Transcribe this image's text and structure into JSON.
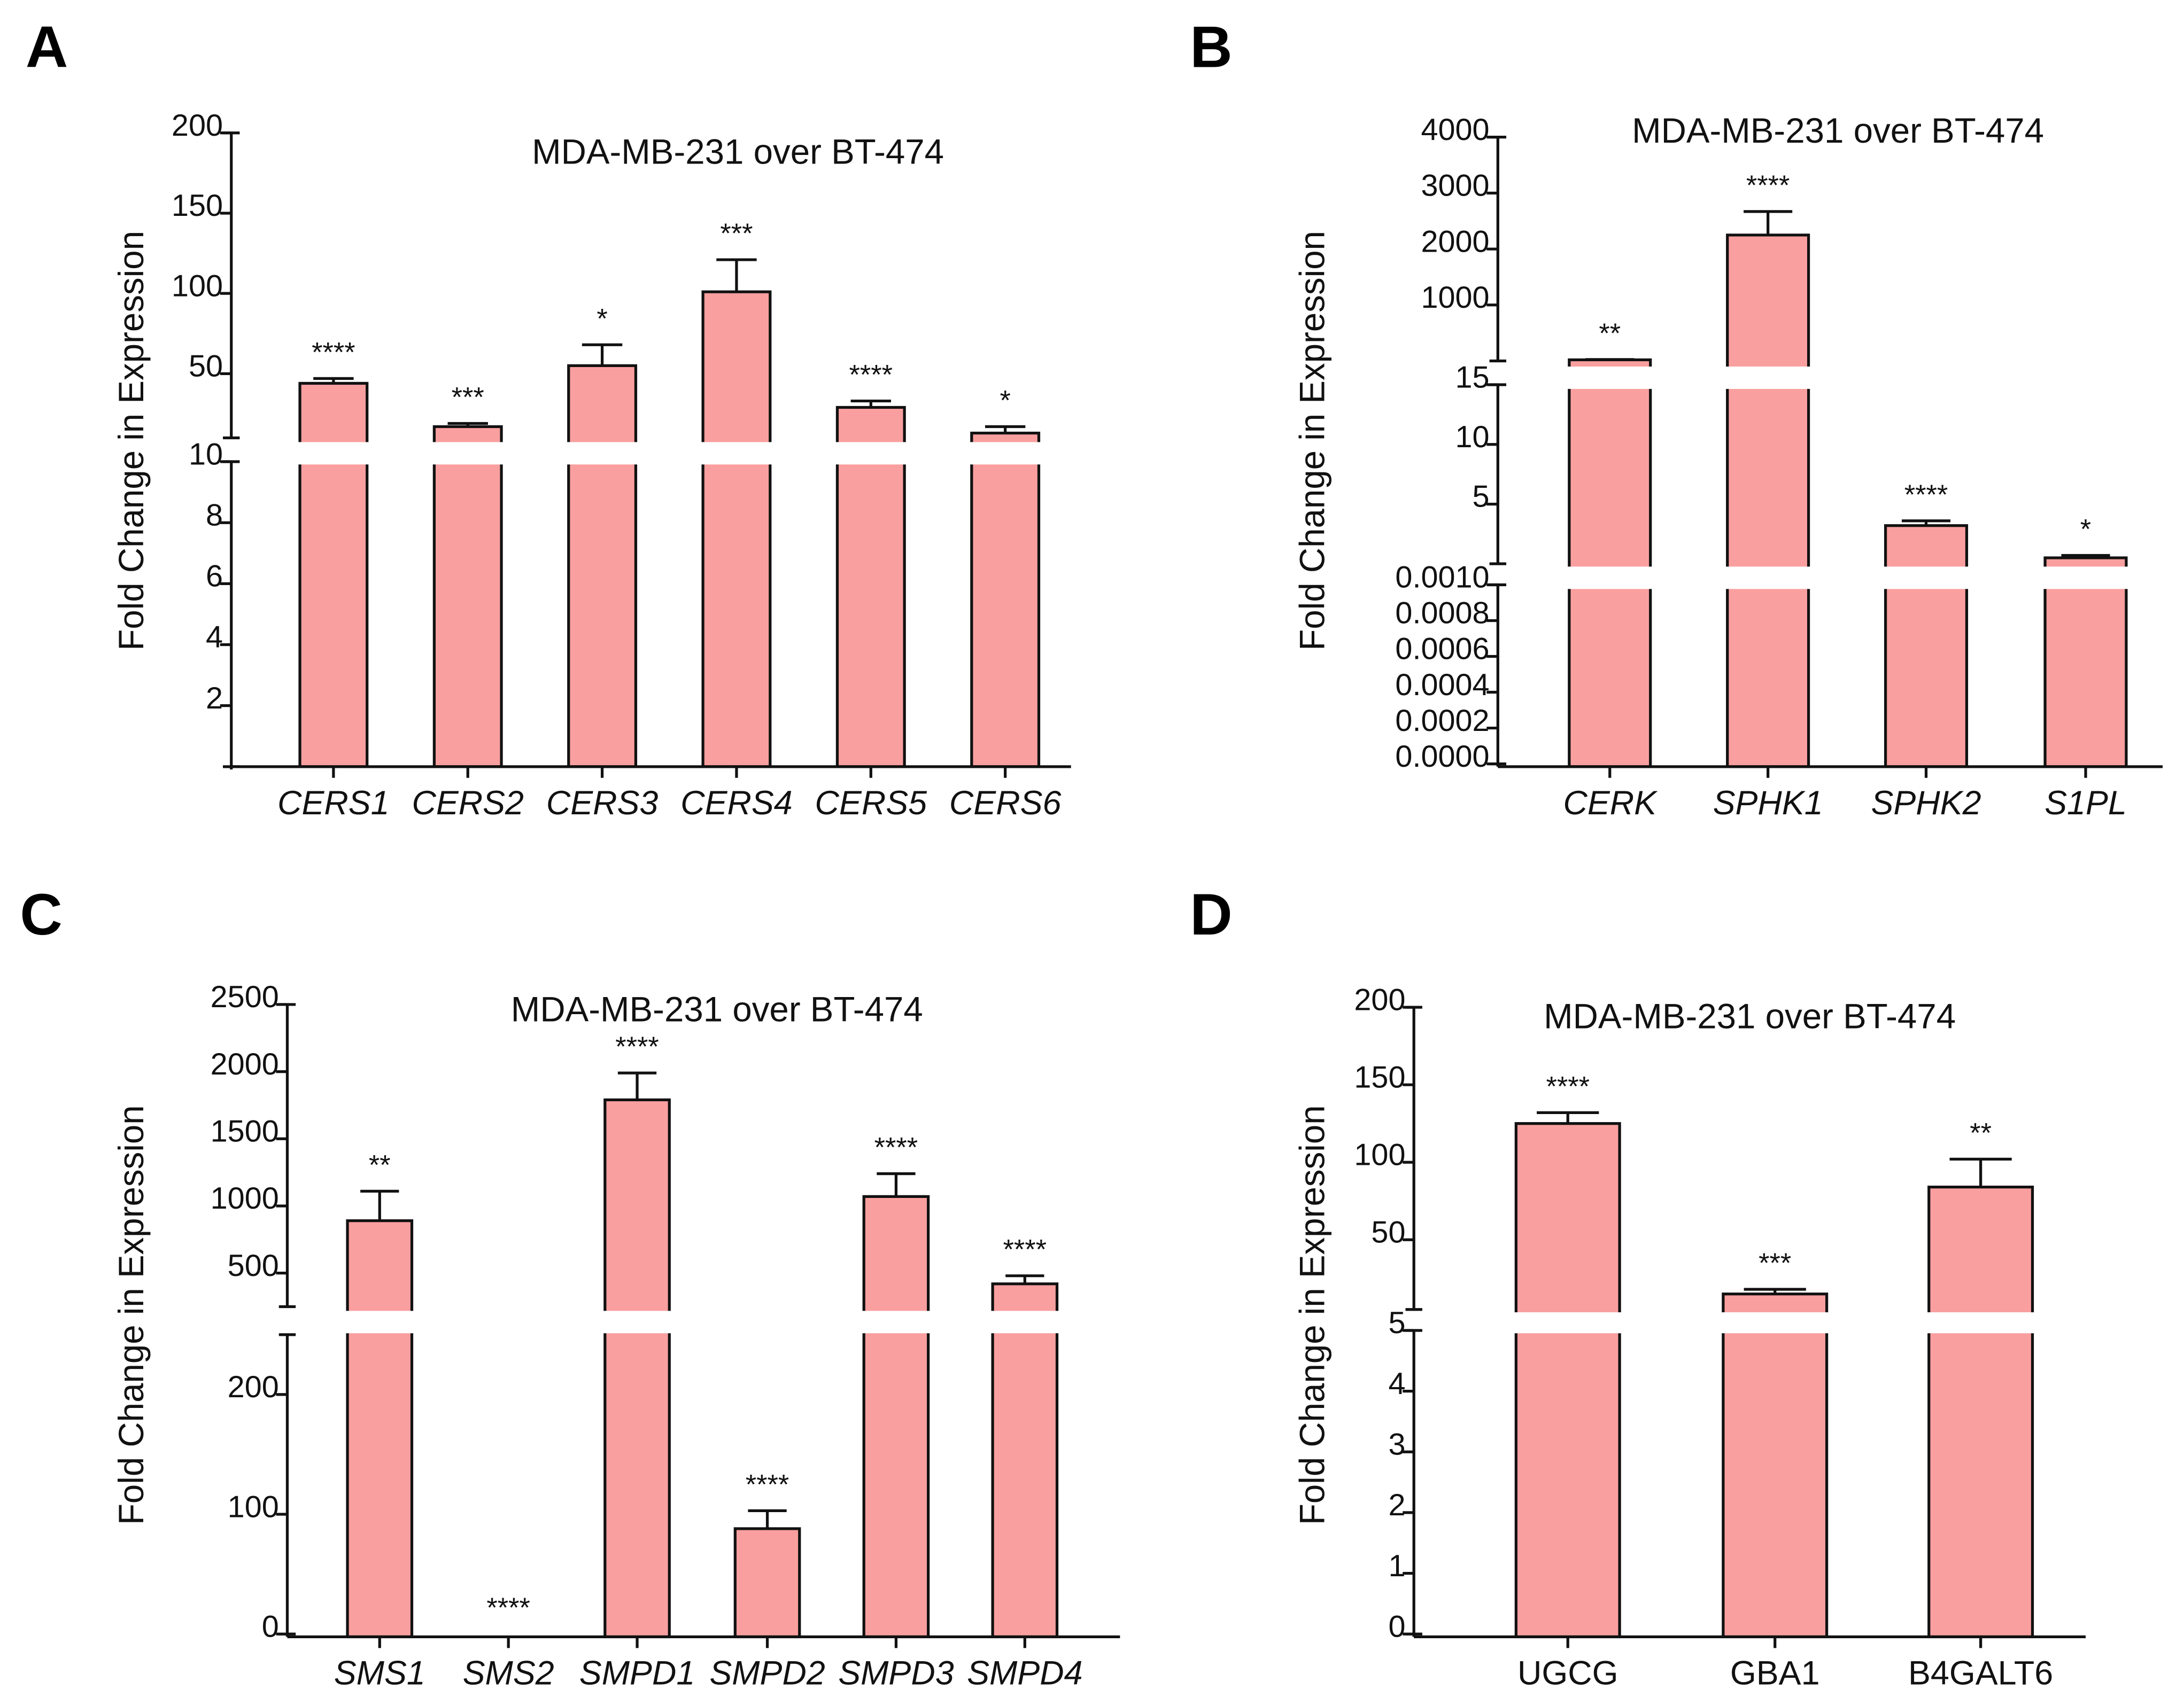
{
  "colors": {
    "bar": "#fa9f9f",
    "stroke": "#111111"
  },
  "chart_data": [
    {
      "panel": "A",
      "type": "bar",
      "title": "MDA-MB-231 over BT-474",
      "ylabel": "Fold Change in Expression",
      "italic": true,
      "categories": [
        "CERS1",
        "CERS2",
        "CERS3",
        "CERS4",
        "CERS5",
        "CERS6"
      ],
      "values": [
        44,
        17,
        55,
        101,
        29,
        13
      ],
      "errors": [
        3,
        2,
        13,
        20,
        4,
        4
      ],
      "significance": [
        "****",
        "***",
        "*",
        "***",
        "****",
        "*"
      ],
      "y_segments": [
        {
          "range": [
            0,
            10
          ],
          "ticks": [
            "2",
            "4",
            "6",
            "8",
            "10"
          ]
        },
        {
          "range": [
            10,
            200
          ],
          "ticks": [
            "50",
            "100",
            "150",
            "200"
          ]
        }
      ]
    },
    {
      "panel": "B",
      "type": "bar",
      "title": "MDA-MB-231 over BT-474",
      "ylabel": "Fold Change in Expression",
      "italic": true,
      "categories": [
        "CERK",
        "SPHK1",
        "SPHK2",
        "S1PL"
      ],
      "values": [
        20,
        2250,
        3.2,
        0.5
      ],
      "errors": [
        5,
        420,
        0.4,
        0.2
      ],
      "significance": [
        "**",
        "****",
        "****",
        "*"
      ],
      "y_segments": [
        {
          "range": [
            0,
            0.001
          ],
          "ticks": [
            "0.0000",
            "0.0002",
            "0.0004",
            "0.0006",
            "0.0008",
            "0.0010"
          ]
        },
        {
          "range": [
            0,
            15
          ],
          "ticks": [
            "5",
            "10",
            "15"
          ]
        },
        {
          "range": [
            0,
            4000
          ],
          "ticks": [
            "1000",
            "2000",
            "3000",
            "4000"
          ]
        }
      ]
    },
    {
      "panel": "C",
      "type": "bar",
      "title": "MDA-MB-231 over BT-474",
      "ylabel": "Fold Change in Expression",
      "italic": true,
      "categories": [
        "SMS1",
        "SMS2",
        "SMPD1",
        "SMPD2",
        "SMPD3",
        "SMPD4"
      ],
      "values": [
        890,
        0,
        1790,
        88,
        1070,
        420
      ],
      "errors": [
        220,
        0,
        200,
        15,
        170,
        60
      ],
      "significance": [
        "**",
        "****",
        "****",
        "****",
        "****",
        "****"
      ],
      "y_segments": [
        {
          "range": [
            0,
            250
          ],
          "ticks": [
            "0",
            "100",
            "200"
          ]
        },
        {
          "range": [
            250,
            2500
          ],
          "ticks": [
            "500",
            "1000",
            "1500",
            "2000",
            "2500"
          ]
        }
      ]
    },
    {
      "panel": "D",
      "type": "bar",
      "title": "MDA-MB-231 over BT-474",
      "ylabel": "Fold Change in Expression",
      "italic": false,
      "categories": [
        "UGCG",
        "GBA1",
        "B4GALT6"
      ],
      "values": [
        125,
        15,
        84
      ],
      "errors": [
        7,
        3,
        18
      ],
      "significance": [
        "****",
        "***",
        "**"
      ],
      "y_segments": [
        {
          "range": [
            0,
            5
          ],
          "ticks": [
            "0",
            "1",
            "2",
            "3",
            "4",
            "5"
          ]
        },
        {
          "range": [
            5,
            200
          ],
          "ticks": [
            "50",
            "100",
            "150",
            "200"
          ]
        }
      ]
    }
  ]
}
